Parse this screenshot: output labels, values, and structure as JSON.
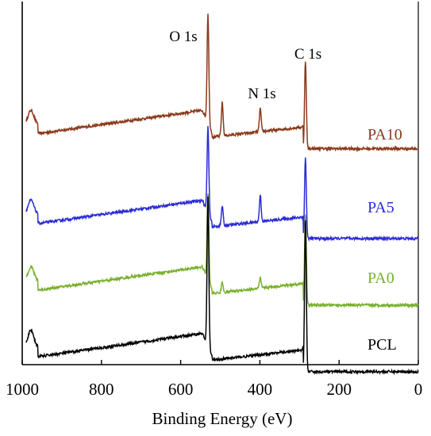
{
  "chart_data": {
    "type": "line",
    "title": "",
    "xlabel": "Binding Energy (eV)",
    "ylabel": "",
    "xlim": [
      1000,
      0
    ],
    "x_reversed": true,
    "x_ticks": [
      "1000",
      "800",
      "600",
      "400",
      "200",
      "0"
    ],
    "x_tick_values": [
      1000,
      800,
      600,
      400,
      200,
      0
    ],
    "y_ticks_shown": false,
    "grid": false,
    "legend": "none (inline series labels at right)",
    "annotations": [
      {
        "text": "O 1s",
        "x": 531
      },
      {
        "text": "N 1s",
        "x": 399
      },
      {
        "text": "C 1s",
        "x": 285
      }
    ],
    "series": [
      {
        "name": "PA10",
        "color": "#8B3A1A",
        "base": 0.67,
        "peaks": [
          [
            978,
            0.04
          ],
          [
            531,
            0.33
          ],
          [
            495,
            0.1
          ],
          [
            399,
            0.07
          ],
          [
            285,
            0.27
          ]
        ]
      },
      {
        "name": "PA5",
        "color": "#2B2BD6",
        "base": 0.4,
        "peaks": [
          [
            978,
            0.04
          ],
          [
            531,
            0.26
          ],
          [
            495,
            0.06
          ],
          [
            399,
            0.08
          ],
          [
            285,
            0.25
          ]
        ]
      },
      {
        "name": "PA0",
        "color": "#7AB02E",
        "base": 0.2,
        "peaks": [
          [
            978,
            0.04
          ],
          [
            531,
            0.26
          ],
          [
            495,
            0.03
          ],
          [
            399,
            0.03
          ],
          [
            285,
            0.28
          ]
        ]
      },
      {
        "name": "PCL",
        "color": "#000000",
        "base": 0.0,
        "peaks": [
          [
            978,
            0.05
          ],
          [
            531,
            0.45
          ],
          [
            285,
            0.46
          ]
        ]
      }
    ]
  }
}
